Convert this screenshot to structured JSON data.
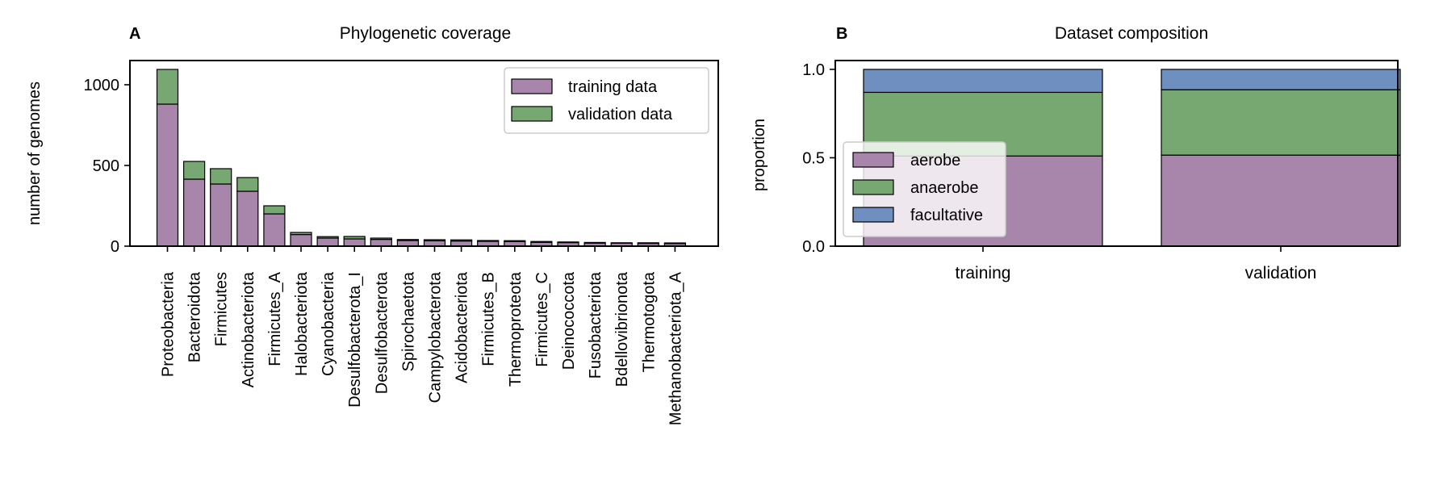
{
  "chart_data": [
    {
      "panel_label": "A",
      "type": "bar",
      "stacked": true,
      "title": "Phylogenetic coverage",
      "ylabel": "number of genomes",
      "xlabel": "",
      "ylim": [
        0,
        1150
      ],
      "yticks": [
        0,
        500,
        1000
      ],
      "legend_position": "top-right",
      "categories": [
        "Proteobacteria",
        "Bacteroidota",
        "Firmicutes",
        "Actinobacteriota",
        "Firmicutes_A",
        "Halobacteriota",
        "Cyanobacteria",
        "Desulfobacterota_I",
        "Desulfobacterota",
        "Spirochaetota",
        "Campylobacterota",
        "Acidobacteriota",
        "Firmicutes_B",
        "Thermoproteota",
        "Firmicutes_C",
        "Deinococcota",
        "Fusobacteriota",
        "Bdellovibrionota",
        "Thermotogota",
        "Methanobacteriota_A"
      ],
      "series": [
        {
          "name": "training data",
          "color": "#a885ab",
          "values": [
            880,
            415,
            385,
            340,
            200,
            72,
            50,
            45,
            42,
            35,
            33,
            32,
            30,
            28,
            24,
            22,
            19,
            18,
            17,
            16
          ]
        },
        {
          "name": "validation data",
          "color": "#77a872",
          "values": [
            215,
            110,
            95,
            85,
            50,
            13,
            9,
            15,
            8,
            6,
            7,
            7,
            5,
            6,
            5,
            4,
            4,
            3,
            4,
            4
          ]
        }
      ]
    },
    {
      "panel_label": "B",
      "type": "bar",
      "stacked": true,
      "title": "Dataset composition",
      "ylabel": "proportion",
      "xlabel": "",
      "ylim": [
        0,
        1.05
      ],
      "yticks": [
        "0.0",
        "0.5",
        "1.0"
      ],
      "legend_position": "center-left",
      "categories": [
        "training",
        "validation"
      ],
      "series": [
        {
          "name": "aerobe",
          "color": "#a885ab",
          "values": [
            0.51,
            0.515
          ]
        },
        {
          "name": "anaerobe",
          "color": "#77a872",
          "values": [
            0.36,
            0.37
          ]
        },
        {
          "name": "facultative",
          "color": "#6f8fc1",
          "values": [
            0.13,
            0.115
          ]
        }
      ]
    }
  ]
}
